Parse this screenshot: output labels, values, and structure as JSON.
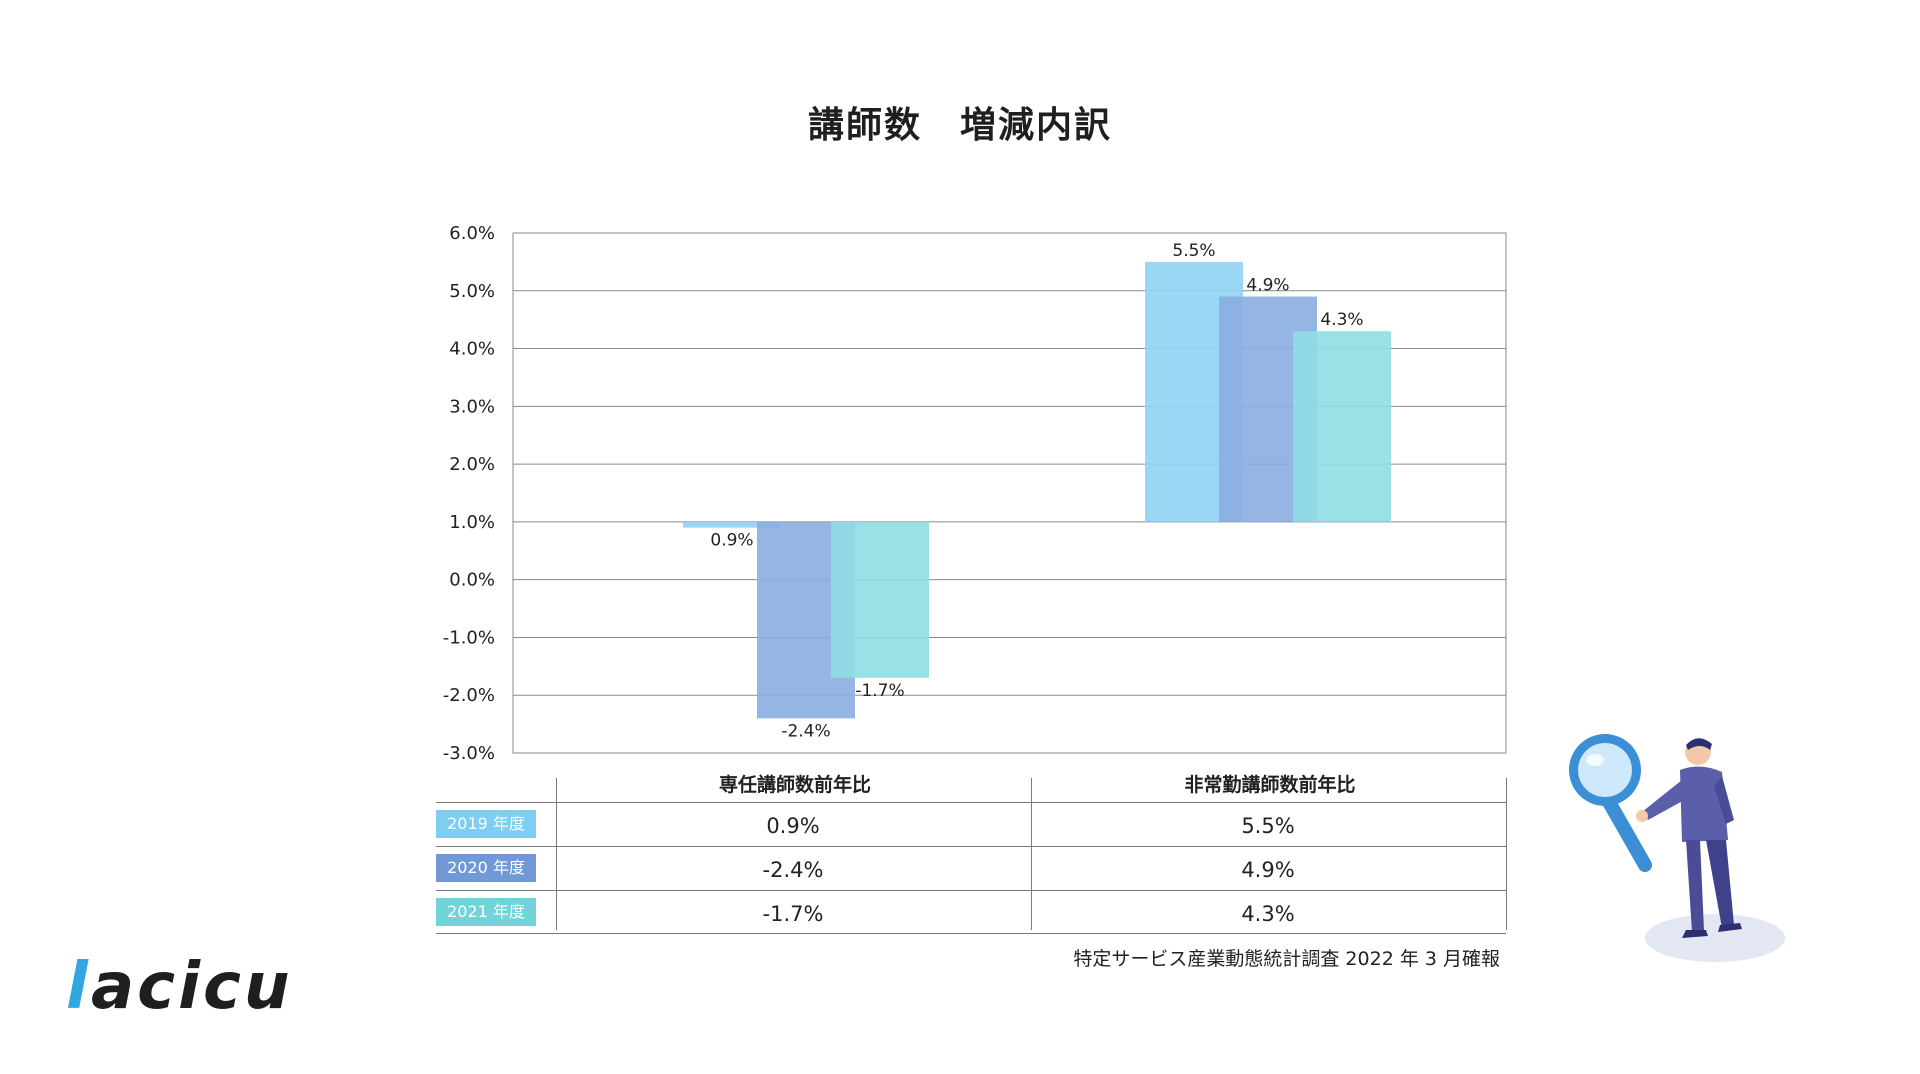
{
  "title": "講師数　増減内訳",
  "chart_data": {
    "type": "bar",
    "ylim": [
      -3.0,
      6.0
    ],
    "yticks": [
      "6.0%",
      "5.0%",
      "4.0%",
      "3.0%",
      "2.0%",
      "1.0%",
      "0.0%",
      "-1.0%",
      "-2.0%",
      "-3.0%"
    ],
    "tick_values": [
      6,
      5,
      4,
      3,
      2,
      1,
      0,
      -1,
      -2,
      -3
    ],
    "baseline": 1.0,
    "categories": [
      "専任講師数前年比",
      "非常勤講師数前年比"
    ],
    "series": [
      {
        "name": "2019 年度",
        "values": [
          0.9,
          5.5
        ],
        "labels": [
          "0.9%",
          "5.5%"
        ],
        "color": "#8fd3f4"
      },
      {
        "name": "2020 年度",
        "values": [
          -2.4,
          4.9
        ],
        "labels": [
          "-2.4%",
          "4.9%"
        ],
        "color": "#8aaee0"
      },
      {
        "name": "2021 年度",
        "values": [
          -1.7,
          4.3
        ],
        "labels": [
          "-1.7%",
          "4.3%"
        ],
        "color": "#8fdde3"
      }
    ],
    "grid": true
  },
  "table": {
    "headers": [
      "専任講師数前年比",
      "非常勤講師数前年比"
    ],
    "rows": [
      {
        "label": "2019 年度",
        "values": [
          "0.9%",
          "5.5%"
        ],
        "color": "#7fcdf0"
      },
      {
        "label": "2020 年度",
        "values": [
          "-2.4%",
          "4.9%"
        ],
        "color": "#7099d6"
      },
      {
        "label": "2021 年度",
        "values": [
          "-1.7%",
          "4.3%"
        ],
        "color": "#72d3da"
      }
    ]
  },
  "source": "特定サービス産業動態統計調査 2022 年 3 月確報",
  "logo": {
    "accent": "l",
    "rest": "acicu"
  },
  "illustration": {
    "icon": "magnifier-person-icon"
  }
}
